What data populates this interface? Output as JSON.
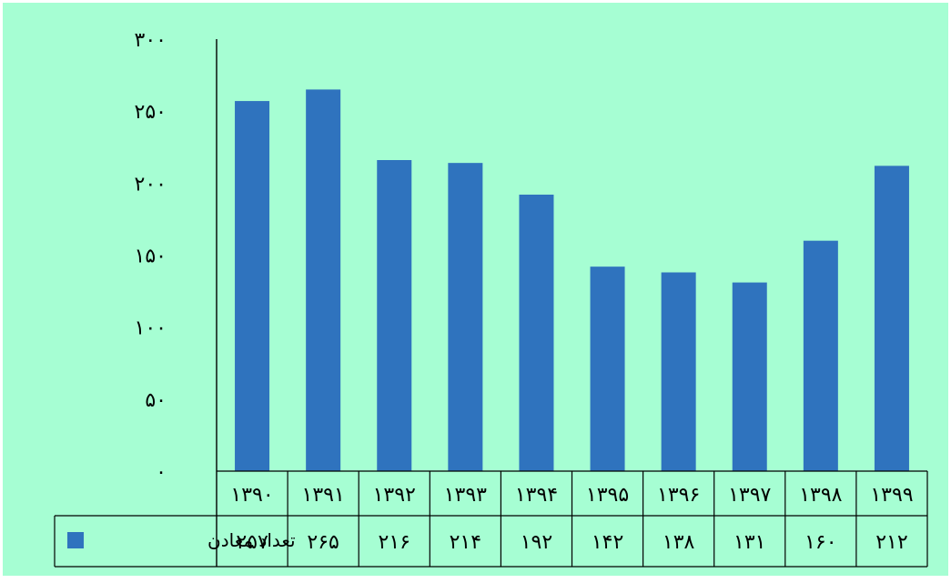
{
  "colors": {
    "background": "#a6fed3",
    "bar": "#2f73be",
    "axis": "#000000"
  },
  "chart_data": {
    "type": "bar",
    "title": "",
    "xlabel": "",
    "ylabel": "",
    "ylim": [
      0,
      300
    ],
    "ytick_values": [
      0,
      50,
      100,
      150,
      200,
      250,
      300
    ],
    "ytick_labels": [
      "۰",
      "۵۰",
      "۱۰۰",
      "۱۵۰",
      "۲۰۰",
      "۲۵۰",
      "۳۰۰"
    ],
    "categories": [
      "۱۳۹۰",
      "۱۳۹۱",
      "۱۳۹۲",
      "۱۳۹۳",
      "۱۳۹۴",
      "۱۳۹۵",
      "۱۳۹۶",
      "۱۳۹۷",
      "۱۳۹۸",
      "۱۳۹۹"
    ],
    "legend": "bottom-left table",
    "series": [
      {
        "name": "تعداد معادن",
        "values": [
          257,
          265,
          216,
          214,
          192,
          142,
          138,
          131,
          160,
          212
        ],
        "value_labels": [
          "۲۵۷",
          "۲۶۵",
          "۲۱۶",
          "۲۱۴",
          "۱۹۲",
          "۱۴۲",
          "۱۳۸",
          "۱۳۱",
          "۱۶۰",
          "۲۱۲"
        ]
      }
    ]
  }
}
